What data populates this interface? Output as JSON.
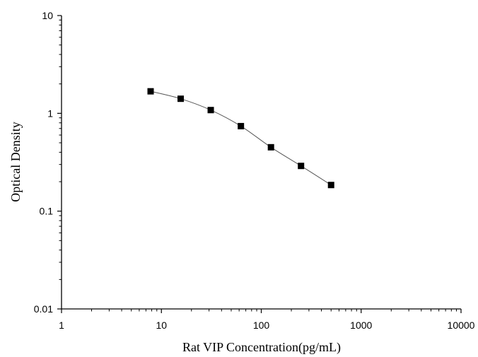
{
  "chart_data": {
    "type": "line",
    "xlabel": "Rat VIP Concentration(pg/mL)",
    "ylabel": "Optical Density",
    "xscale": "log",
    "yscale": "log",
    "xlim": [
      1,
      10000
    ],
    "ylim": [
      0.01,
      10
    ],
    "x_ticks": [
      "1",
      "10",
      "100",
      "1000",
      "10000"
    ],
    "y_ticks": [
      "0.01",
      "0.1",
      "1",
      "10"
    ],
    "grid": false,
    "legend": "none",
    "marker": "square",
    "colors": {
      "line": "#555555",
      "marker": "#000000",
      "axis": "#000000"
    },
    "series": [
      {
        "x": [
          7.8,
          15.6,
          31.2,
          62.5,
          125,
          250,
          500
        ],
        "y": [
          1.68,
          1.41,
          1.08,
          0.74,
          0.45,
          0.29,
          0.185
        ]
      }
    ]
  }
}
